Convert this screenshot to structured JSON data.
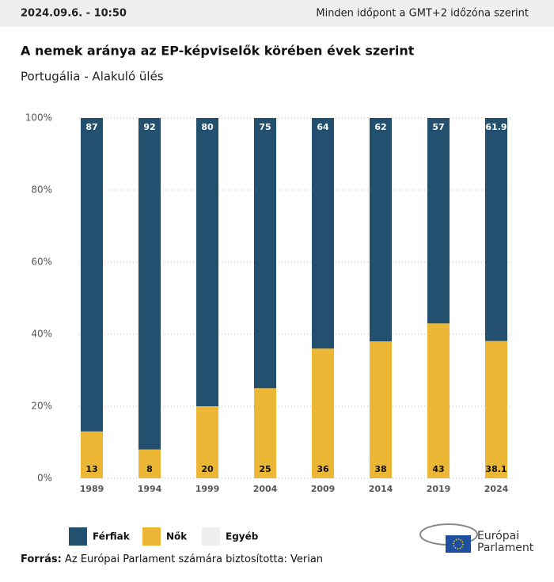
{
  "header": {
    "timestamp": "2024.09.6. - 10:50",
    "timezone_note": "Minden időpont a GMT+2 időzóna szerint"
  },
  "chart_data": {
    "type": "stacked-bar",
    "title": "A nemek aránya az EP-képviselők körében évek szerint",
    "subtitle": "Portugália - Alakuló ülés",
    "categories": [
      "1989",
      "1994",
      "1999",
      "2004",
      "2009",
      "2014",
      "2019",
      "2024"
    ],
    "series": [
      {
        "name": "Nők",
        "color": "#ebb734",
        "values": [
          13,
          8,
          20,
          25,
          36,
          38,
          43,
          38.1
        ]
      },
      {
        "name": "Férfiak",
        "color": "#24506f",
        "values": [
          87,
          92,
          80,
          75,
          64,
          62,
          57,
          61.9
        ]
      },
      {
        "name": "Egyéb",
        "color": "#efeff1",
        "values": [
          0,
          0,
          0,
          0,
          0,
          0,
          0,
          0
        ]
      }
    ],
    "ylim": [
      0,
      100
    ],
    "yticks": [
      {
        "value": 0,
        "label": "0%"
      },
      {
        "value": 20,
        "label": "20%"
      },
      {
        "value": 40,
        "label": "40%"
      },
      {
        "value": 60,
        "label": "60%"
      },
      {
        "value": 80,
        "label": "80%"
      },
      {
        "value": 100,
        "label": "100%"
      }
    ],
    "grid": true
  },
  "source": {
    "label": "Forrás:",
    "text": "Az Európai Parlament számára biztosította: Verian"
  },
  "logo": {
    "line1": "Európai",
    "line2": "Parlament"
  }
}
